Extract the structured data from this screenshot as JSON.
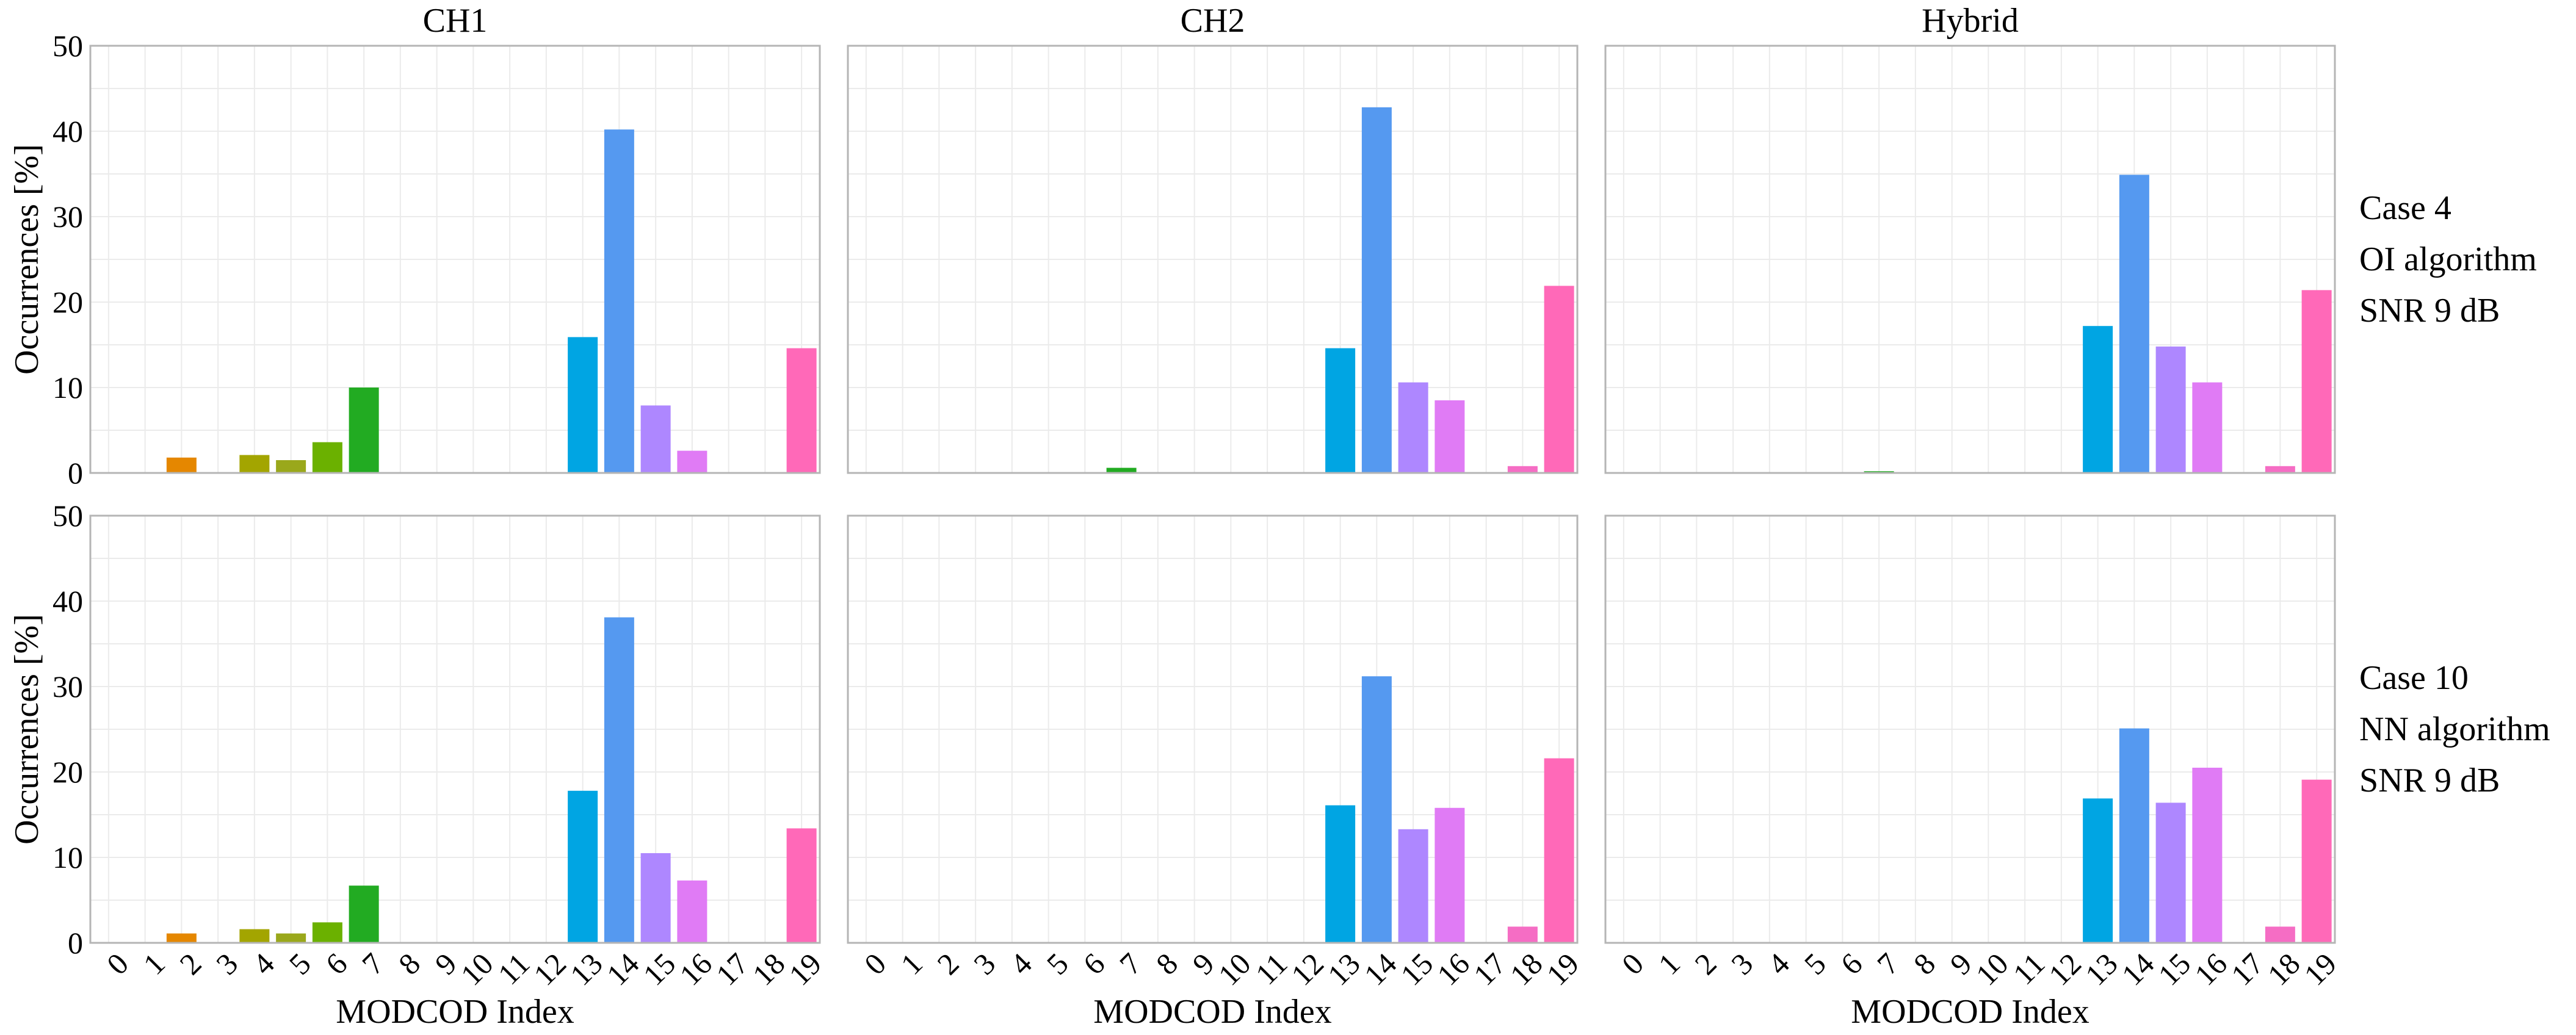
{
  "chart_data": {
    "type": "bar",
    "layout": "facet-grid 2 rows x 3 columns",
    "columns": [
      "CH1",
      "CH2",
      "Hybrid"
    ],
    "rows": [
      [
        "Case 4",
        "OI algorithm",
        "SNR 9 dB"
      ],
      [
        "Case 10",
        "NN algorithm",
        "SNR 9 dB"
      ]
    ],
    "xlabel": "MODCOD  Index",
    "ylabel": "Occurrences [%]",
    "ylim": [
      0,
      50
    ],
    "yticks": [
      0,
      10,
      20,
      30,
      40,
      50
    ],
    "categories": [
      "0",
      "1",
      "2",
      "3",
      "4",
      "5",
      "6",
      "7",
      "8",
      "9",
      "10",
      "11",
      "12",
      "13",
      "14",
      "15",
      "16",
      "17",
      "18",
      "19"
    ],
    "grid": true,
    "legend": "none",
    "colors": [
      "#F8766D",
      "#EA8331",
      "#E58700",
      "#C99800",
      "#A3A500",
      "#9AA81B",
      "#6BB100",
      "#22AB22",
      "#00BA38",
      "#00C08B",
      "#00BFC4",
      "#00B8E7",
      "#00A9FF",
      "#00A5E3",
      "#5599F0",
      "#AE87FF",
      "#E07BF5",
      "#F066CF",
      "#F56DC4",
      "#FF69B8"
    ],
    "panels": [
      {
        "row": 0,
        "col": 0,
        "values": [
          0,
          0,
          1.8,
          0,
          2.1,
          1.5,
          3.6,
          10.0,
          0,
          0,
          0,
          0,
          0,
          15.9,
          40.2,
          7.9,
          2.6,
          0,
          0,
          14.6
        ]
      },
      {
        "row": 0,
        "col": 1,
        "values": [
          0,
          0,
          0,
          0,
          0,
          0,
          0,
          0.6,
          0,
          0,
          0,
          0,
          0,
          14.6,
          42.8,
          10.6,
          8.5,
          0,
          0.8,
          21.9
        ]
      },
      {
        "row": 0,
        "col": 2,
        "values": [
          0,
          0,
          0,
          0,
          0,
          0,
          0,
          0.2,
          0,
          0,
          0,
          0,
          0,
          17.2,
          34.9,
          14.8,
          10.6,
          0,
          0.8,
          21.4
        ]
      },
      {
        "row": 1,
        "col": 0,
        "values": [
          0,
          0,
          1.1,
          0,
          1.6,
          1.1,
          2.4,
          6.7,
          0,
          0,
          0,
          0,
          0,
          17.8,
          38.1,
          10.5,
          7.3,
          0,
          0,
          13.4
        ]
      },
      {
        "row": 1,
        "col": 1,
        "values": [
          0,
          0,
          0,
          0,
          0,
          0,
          0,
          0.1,
          0,
          0,
          0,
          0,
          0,
          16.1,
          31.2,
          13.3,
          15.8,
          0,
          1.9,
          21.6
        ]
      },
      {
        "row": 1,
        "col": 2,
        "values": [
          0,
          0,
          0,
          0,
          0,
          0,
          0,
          0,
          0,
          0,
          0,
          0,
          0,
          16.9,
          25.1,
          16.4,
          20.5,
          0,
          1.9,
          19.1
        ]
      }
    ]
  }
}
